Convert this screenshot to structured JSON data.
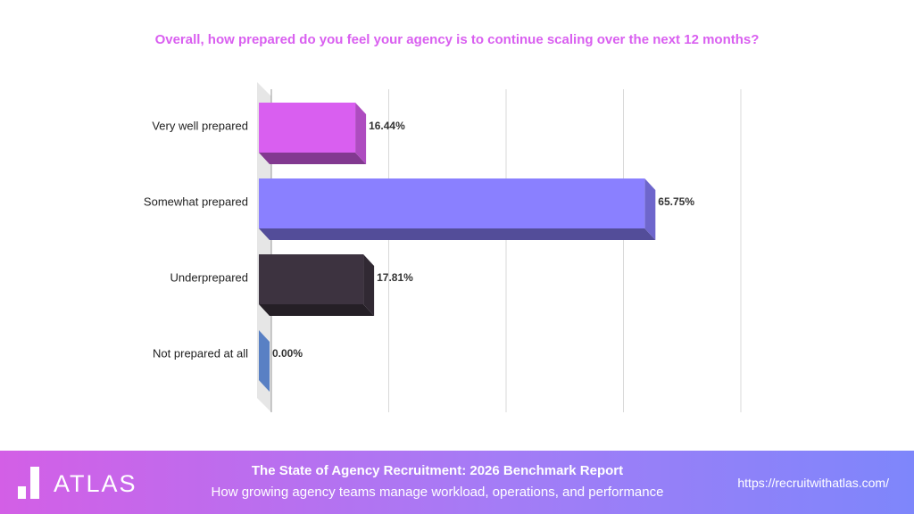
{
  "chart_data": {
    "type": "bar",
    "orientation": "horizontal",
    "title": "Overall, how prepared do you feel your agency is to continue scaling over the next 12 months?",
    "categories": [
      "Very well prepared",
      "Somewhat prepared",
      "Underprepared",
      "Not prepared at all"
    ],
    "values": [
      16.44,
      65.75,
      17.81,
      0
    ],
    "value_labels": [
      "16.44%",
      "65.75%",
      "17.81%",
      "0.00%"
    ],
    "colors": [
      "#d95ff0",
      "#8a80ff",
      "#3d3340",
      "#6fa0f5"
    ],
    "xlim": [
      0,
      80
    ],
    "xticks": [
      0,
      20,
      40,
      60,
      80
    ],
    "grid": true
  },
  "footer": {
    "logo": "ATLAS",
    "title": "The State of Agency Recruitment: 2026 Benchmark Report",
    "subtitle": "How growing agency teams manage workload, operations, and performance",
    "url": "https://recruitwithatlas.com/"
  }
}
